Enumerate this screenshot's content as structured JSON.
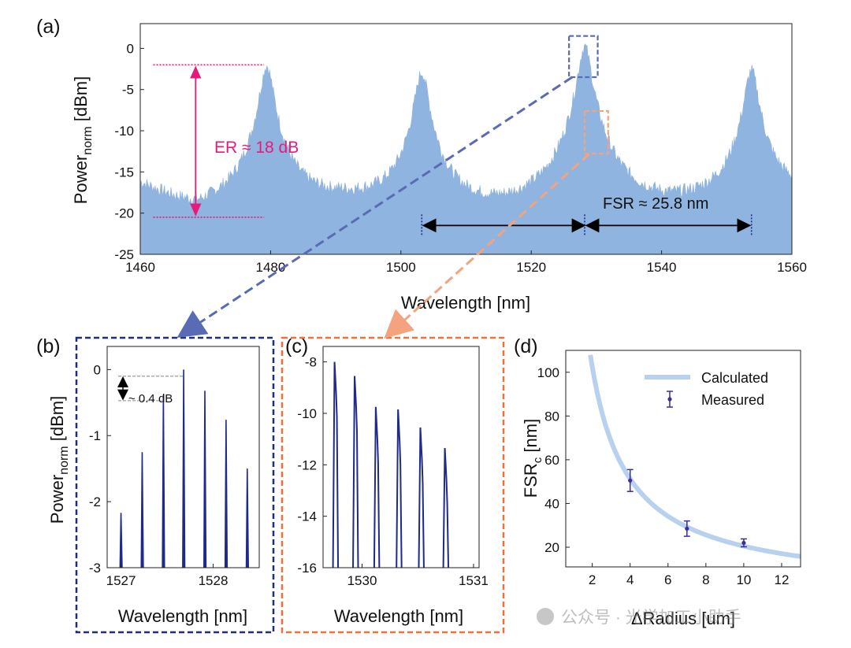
{
  "colors": {
    "spectrum": "#8fb4df",
    "trace": "#1f2a8a",
    "er": "#e8197a",
    "b_box": "#1f2d7a",
    "c_box": "#f0703a",
    "calc_line": "#b7d1ee",
    "measured": "#3a2d96",
    "zoom_a1": "#5a6bb5",
    "zoom_a2": "#f3a37e"
  },
  "chart_data": [
    {
      "id": "a",
      "panel_label": "(a)",
      "type": "area",
      "xlabel": "Wavelength [nm]",
      "ylabel_main": "Power",
      "ylabel_sub": "norm",
      "ylabel_unit": " [dBm]",
      "xlim": [
        1460,
        1560
      ],
      "ylim": [
        -25,
        3
      ],
      "xticks": [
        1460,
        1480,
        1500,
        1520,
        1540,
        1560
      ],
      "yticks": [
        0,
        -5,
        -10,
        -15,
        -20,
        -25
      ],
      "peaks": [
        {
          "center": 1479.4,
          "peak": -2.2
        },
        {
          "center": 1503.2,
          "peak": -3.0
        },
        {
          "center": 1528.2,
          "peak": 0.2
        },
        {
          "center": 1553.8,
          "peak": -2.8
        }
      ],
      "baseline_troughs": [
        {
          "x": 1460,
          "y": -16.5
        },
        {
          "x": 1469,
          "y": -20.3
        },
        {
          "x": 1491,
          "y": -19.0
        },
        {
          "x": 1516,
          "y": -21.0
        },
        {
          "x": 1541,
          "y": -20.2
        },
        {
          "x": 1560,
          "y": -18.0
        }
      ],
      "er_annotation": {
        "text": "ER ≈ 18 dB",
        "x": 1468.5,
        "y_top": -2.0,
        "y_bottom": -20.5,
        "line_x0": 1462,
        "line_x1": 1479
      },
      "fsr_annotation": {
        "text": "FSR ≈ 25.8 nm",
        "x_points": [
          1503.2,
          1528.2,
          1553.8
        ],
        "y": -21.5
      },
      "zoom_boxes": [
        {
          "x0": 1525.8,
          "x1": 1530.2,
          "y0": -3.5,
          "y1": 1.5
        },
        {
          "x0": 1528.2,
          "x1": 1531.8,
          "y0": -12.8,
          "y1": -7.6
        }
      ]
    },
    {
      "id": "b",
      "panel_label": "(b)",
      "type": "line",
      "xlabel": "Wavelength [nm]",
      "ylabel_main": "Power",
      "ylabel_sub": "norm",
      "ylabel_unit": " [dBm]",
      "xlim": [
        1526.85,
        1528.5
      ],
      "ylim": [
        -3,
        0.35
      ],
      "xticks": [
        1527,
        1528
      ],
      "yticks": [
        0,
        -1,
        -2,
        -3
      ],
      "x": [
        1527.0,
        1527.23,
        1527.46,
        1527.68,
        1527.91,
        1528.14,
        1528.37
      ],
      "values": [
        -2.17,
        -1.25,
        -0.38,
        0.0,
        -0.32,
        -0.76,
        -1.5
      ],
      "annotation": {
        "text": "~ 0.4 dB",
        "y_top": -0.1,
        "y_bottom": -0.47
      }
    },
    {
      "id": "c",
      "panel_label": "(c)",
      "type": "line",
      "xlabel": "Wavelength [nm]",
      "xlim": [
        1529.65,
        1531.05
      ],
      "ylim": [
        -16,
        -7.4
      ],
      "xticks": [
        1530,
        1531
      ],
      "xtick_labels": [
        "1530",
        "1531"
      ],
      "yticks": [
        -8,
        -10,
        -12,
        -14,
        -16
      ],
      "x": [
        1529.76,
        1529.94,
        1530.13,
        1530.33,
        1530.53,
        1530.75
      ],
      "values": [
        -8.0,
        -8.55,
        -9.75,
        -9.85,
        -10.55,
        -11.35
      ]
    },
    {
      "id": "d",
      "panel_label": "(d)",
      "type": "scatter",
      "xlabel": "ΔRadius [um]",
      "ylabel_main": "FSR",
      "ylabel_sub": "c",
      "ylabel_unit": " [nm]",
      "xlim": [
        0.6,
        13
      ],
      "ylim": [
        11,
        110
      ],
      "xticks": [
        2,
        4,
        6,
        8,
        10,
        12
      ],
      "yticks": [
        20,
        40,
        60,
        80,
        100
      ],
      "calculated_curve": {
        "name": "Calculated",
        "formula_k": 205,
        "x_from": 1.9,
        "x_to": 13
      },
      "measured": {
        "name": "Measured",
        "x": [
          4,
          7,
          10
        ],
        "values": [
          50.5,
          28.5,
          22.0
        ],
        "errors": [
          5.0,
          3.5,
          1.8
        ]
      },
      "legend_position": "top-right"
    }
  ],
  "watermark": "公众号 · 光学加工小助手"
}
